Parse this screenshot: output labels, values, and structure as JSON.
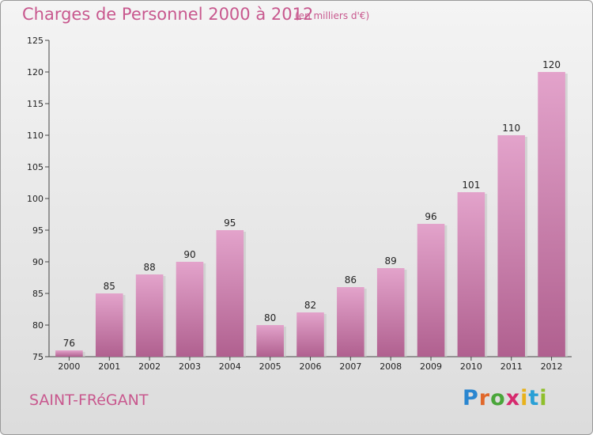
{
  "header": {
    "title": "Charges de Personnel 2000 à 2012",
    "subtitle": "(en milliers d'€)"
  },
  "footer": {
    "commune": "SAINT-FRéGANT",
    "logo_text": "Proxiti"
  },
  "colors": {
    "bar_top": "#e3a3cb",
    "bar_bottom": "#b0608f",
    "title": "#c8588e",
    "logo_letters": [
      "#2a86d0",
      "#e0672a",
      "#4aa63a",
      "#d62a6e",
      "#e8b21c",
      "#2aa0d6",
      "#8fbf2c"
    ]
  },
  "chart_data": {
    "type": "bar",
    "categories": [
      "2000",
      "2001",
      "2002",
      "2003",
      "2004",
      "2005",
      "2006",
      "2007",
      "2008",
      "2009",
      "2010",
      "2011",
      "2012"
    ],
    "values": [
      76,
      85,
      88,
      90,
      95,
      80,
      82,
      86,
      89,
      96,
      101,
      110,
      120
    ],
    "title": "Charges de Personnel 2000 à 2012",
    "ylabel": "",
    "xlabel": "",
    "ylim": [
      75,
      125
    ],
    "yticks": [
      75,
      80,
      85,
      90,
      95,
      100,
      105,
      110,
      115,
      120,
      125
    ],
    "grid": false
  }
}
